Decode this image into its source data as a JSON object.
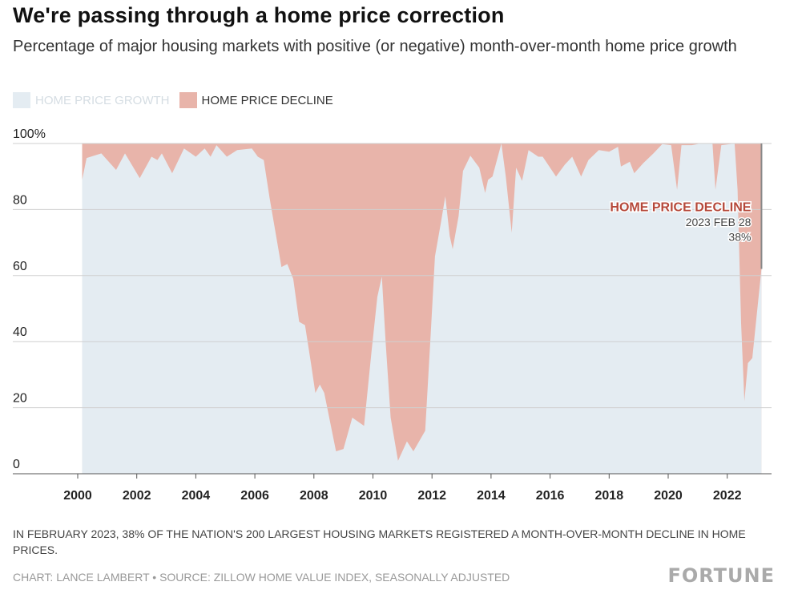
{
  "chart_data": {
    "type": "area",
    "title": "We're passing through a home price correction",
    "subtitle": "Percentage of major housing markets with positive (or negative) month-over-month home price growth",
    "legend": [
      {
        "name": "HOME PRICE GROWTH",
        "color": "#e4ecf2",
        "text_color": "#d5dde3"
      },
      {
        "name": "HOME PRICE DECLINE",
        "color": "#e8b4aa",
        "text_color": "#333333"
      }
    ],
    "legend_placement": "top-left",
    "ylim": [
      0,
      100
    ],
    "yticks": [
      "0",
      "20",
      "40",
      "60",
      "80",
      "100%"
    ],
    "ytick_values": [
      0,
      20,
      40,
      60,
      80,
      100
    ],
    "xlim": [
      2000,
      2023.4
    ],
    "xticks": [
      "2000",
      "2002",
      "2004",
      "2006",
      "2008",
      "2010",
      "2012",
      "2014",
      "2016",
      "2018",
      "2020",
      "2022"
    ],
    "grid": true,
    "series_note": "growth share (%) of markets; decline share = 100 - growth",
    "series": [
      {
        "name": "HOME PRICE GROWTH",
        "x": [
          2000.15,
          2000.3,
          2000.8,
          2001.3,
          2001.6,
          2002.1,
          2002.5,
          2002.7,
          2002.85,
          2003.2,
          2003.6,
          2004.0,
          2004.3,
          2004.5,
          2004.7,
          2005.05,
          2005.4,
          2005.9,
          2006.1,
          2006.3,
          2006.5,
          2006.9,
          2007.1,
          2007.3,
          2007.5,
          2007.7,
          2007.9,
          2008.05,
          2008.2,
          2008.35,
          2008.75,
          2009.0,
          2009.3,
          2009.7,
          2009.95,
          2010.15,
          2010.3,
          2010.43,
          2010.6,
          2010.85,
          2011.15,
          2011.37,
          2011.77,
          2011.95,
          2012.1,
          2012.3,
          2012.45,
          2012.6,
          2012.7,
          2012.9,
          2013.05,
          2013.3,
          2013.6,
          2013.8,
          2013.9,
          2014.05,
          2014.35,
          2014.5,
          2014.7,
          2014.85,
          2015.05,
          2015.27,
          2015.6,
          2015.75,
          2016.2,
          2016.5,
          2016.75,
          2017.05,
          2017.3,
          2017.65,
          2018.0,
          2018.3,
          2018.4,
          2018.7,
          2018.85,
          2019.15,
          2019.5,
          2019.8,
          2020.1,
          2020.3,
          2020.45,
          2020.8,
          2021.1,
          2021.5,
          2021.6,
          2021.8,
          2022.25,
          2022.35,
          2022.47,
          2022.58,
          2022.7,
          2022.85,
          2023.16
        ],
        "values": [
          89,
          95.6,
          97,
          92,
          97,
          89.5,
          96,
          95,
          97,
          91,
          98.5,
          96,
          98.5,
          96,
          99.5,
          96,
          98,
          98.5,
          96,
          95,
          83.5,
          62.6,
          63.5,
          59,
          46,
          45,
          33.5,
          24.5,
          27,
          24.5,
          6.8,
          7.5,
          17,
          14.5,
          37,
          53.6,
          59.7,
          40,
          17,
          3.9,
          9.8,
          6.8,
          13,
          41.5,
          65.8,
          76,
          84,
          72,
          68,
          78,
          91.7,
          96.3,
          92.7,
          85,
          89,
          90,
          100,
          90,
          73,
          92.7,
          88.7,
          98,
          96,
          96,
          90,
          93.6,
          96,
          90,
          95,
          98,
          97.5,
          99,
          93,
          94.5,
          91,
          94,
          97,
          99.8,
          99.5,
          86,
          99.5,
          99.5,
          100,
          100,
          86,
          99.5,
          100,
          86,
          45.6,
          22,
          33.5,
          35,
          62
        ]
      }
    ],
    "annotation": {
      "label": "HOME PRICE DECLINE",
      "date": "2023 FEB 28",
      "value": "38%",
      "x": 2023.16,
      "decline_value": 38
    }
  },
  "note": "IN FEBRUARY 2023, 38% OF THE NATION'S 200 LARGEST HOUSING MARKETS REGISTERED A MONTH-OVER-MONTH DECLINE IN HOME PRICES.",
  "credit": "CHART: LANCE LAMBERT • SOURCE: ZILLOW HOME VALUE INDEX, SEASONALLY ADJUSTED",
  "logo": "FORTUNE",
  "colors": {
    "annotation_label": "#b5483a",
    "marker": "#888888",
    "grid": "#cfcfcf"
  }
}
